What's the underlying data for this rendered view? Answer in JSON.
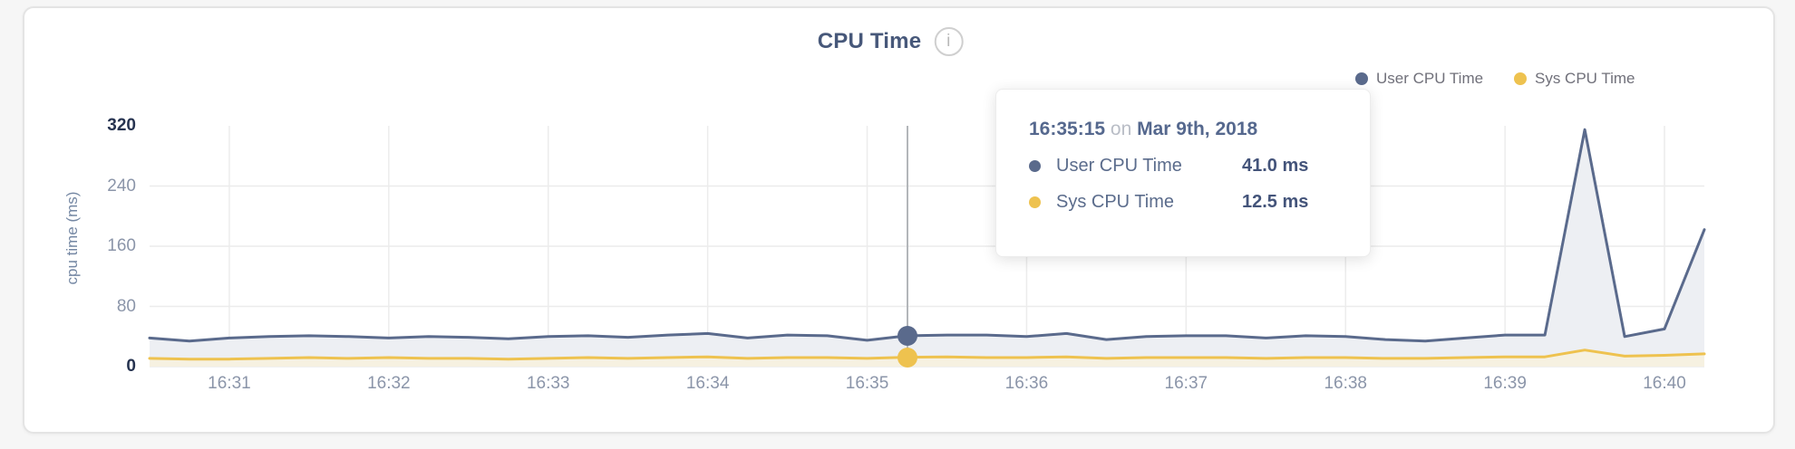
{
  "page": {
    "background": "#f6f6f6",
    "card_background": "#ffffff",
    "card_border": "#e4e4e4"
  },
  "header": {
    "title": "CPU Time",
    "info_icon_glyph": "i"
  },
  "legend": {
    "items": [
      {
        "label": "User CPU Time",
        "color": "#5a6a8c"
      },
      {
        "label": "Sys CPU Time",
        "color": "#eec24f"
      }
    ]
  },
  "tooltip": {
    "time": "16:35:15",
    "connector": "on",
    "date": "Mar 9th, 2018",
    "rows": [
      {
        "label": "User CPU Time",
        "value": "41.0 ms",
        "color": "#5a6a8c"
      },
      {
        "label": "Sys CPU Time",
        "value": "12.5 ms",
        "color": "#eec24f"
      }
    ]
  },
  "chart_data": {
    "type": "area",
    "title": "CPU Time",
    "xlabel": "",
    "ylabel": "cpu time (ms)",
    "ylim": [
      0,
      320
    ],
    "grid": true,
    "legend_position": "top-right",
    "yticks": [
      {
        "value": 0,
        "strong": true
      },
      {
        "value": 80,
        "strong": false
      },
      {
        "value": 160,
        "strong": false
      },
      {
        "value": 240,
        "strong": false
      },
      {
        "value": 320,
        "strong": true
      }
    ],
    "xticks": [
      "16:31",
      "16:32",
      "16:33",
      "16:34",
      "16:35",
      "16:36",
      "16:37",
      "16:38",
      "16:39",
      "16:40"
    ],
    "x_domain": [
      "16:30:30",
      "16:40:15"
    ],
    "x": [
      "16:30:30",
      "16:30:45",
      "16:31:00",
      "16:31:15",
      "16:31:30",
      "16:31:45",
      "16:32:00",
      "16:32:15",
      "16:32:30",
      "16:32:45",
      "16:33:00",
      "16:33:15",
      "16:33:30",
      "16:33:45",
      "16:34:00",
      "16:34:15",
      "16:34:30",
      "16:34:45",
      "16:35:00",
      "16:35:15",
      "16:35:30",
      "16:35:45",
      "16:36:00",
      "16:36:15",
      "16:36:30",
      "16:36:45",
      "16:37:00",
      "16:37:15",
      "16:37:30",
      "16:37:45",
      "16:38:00",
      "16:38:15",
      "16:38:30",
      "16:38:45",
      "16:39:00",
      "16:39:15",
      "16:39:30",
      "16:39:45",
      "16:40:00",
      "16:40:15"
    ],
    "series": [
      {
        "name": "User CPU Time",
        "color": "#5a6a8c",
        "fill": "#edeff3",
        "unit": "ms",
        "values": [
          38,
          34,
          38,
          40,
          41,
          40,
          38,
          40,
          39,
          37,
          40,
          41,
          39,
          42,
          44,
          38,
          42,
          41,
          35,
          41,
          42,
          42,
          40,
          44,
          36,
          40,
          41,
          41,
          38,
          41,
          40,
          36,
          34,
          38,
          42,
          42,
          315,
          40,
          50,
          182
        ]
      },
      {
        "name": "Sys CPU Time",
        "color": "#eec24f",
        "fill": "#f6f1e1",
        "unit": "ms",
        "values": [
          11,
          10,
          10,
          11,
          12,
          11,
          12,
          11,
          11,
          10,
          11,
          12,
          11,
          12,
          13,
          11,
          12,
          12,
          11,
          12.5,
          13,
          12,
          12,
          13,
          11,
          12,
          12,
          12,
          11,
          12,
          12,
          11,
          11,
          12,
          13,
          13,
          22,
          14,
          15,
          17
        ]
      }
    ],
    "hover": {
      "index": 19,
      "time": "16:35:15",
      "date": "Mar 9th, 2018",
      "values": [
        41.0,
        12.5
      ]
    },
    "grid_color": "#ececec",
    "hover_line_color": "#b3b6ba"
  }
}
